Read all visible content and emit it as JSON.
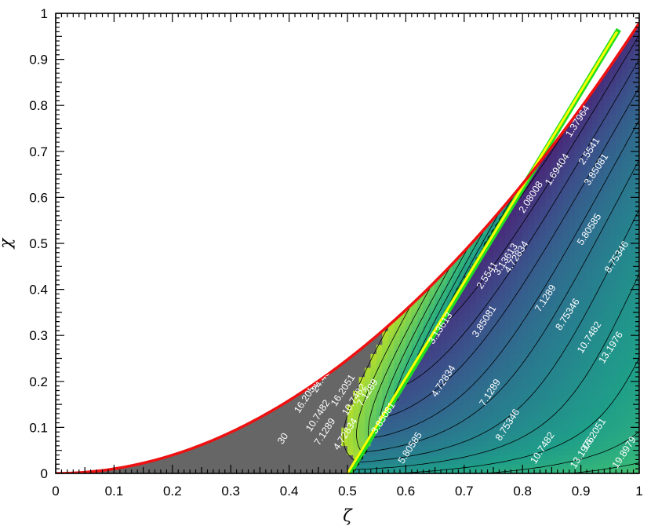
{
  "chart_data": {
    "type": "heatmap",
    "title": "",
    "xlabel": "ζ",
    "ylabel": "χ",
    "xlim": [
      0,
      1
    ],
    "ylim": [
      0,
      1
    ],
    "x_ticks": [
      "0",
      "0.1",
      "0.2",
      "0.3",
      "0.4",
      "0.5",
      "0.6",
      "0.7",
      "0.8",
      "0.9",
      "1"
    ],
    "y_ticks": [
      "0",
      "0.1",
      "0.2",
      "0.3",
      "0.4",
      "0.5",
      "0.6",
      "0.7",
      "0.8",
      "0.9",
      "1"
    ],
    "colormap": [
      "#440154",
      "#482878",
      "#3e4a89",
      "#31688e",
      "#26828e",
      "#1f9e89",
      "#35b779",
      "#6ece58",
      "#b5de2b"
    ],
    "colors": {
      "boundary": "#ee1111",
      "yellow_line": "#ffff00",
      "green_line": "#22dd22",
      "excluded_region": "#666666"
    },
    "contour_levels": [
      1.37964,
      1.69404,
      2.08008,
      2.5541,
      3.13613,
      3.85081,
      4.72834,
      5.80585,
      7.1289,
      8.75346,
      10.7482,
      13.1976,
      16.2051,
      19.8979,
      24.4323,
      30
    ],
    "contour_labels": [
      {
        "text": "30",
        "x": 0.39,
        "y": 0.075
      },
      {
        "text": "24.4323",
        "x": 0.46,
        "y": 0.21
      },
      {
        "text": "16.2051",
        "x": 0.43,
        "y": 0.165
      },
      {
        "text": "16.2051",
        "x": 0.493,
        "y": 0.18
      },
      {
        "text": "10.7482",
        "x": 0.45,
        "y": 0.125
      },
      {
        "text": "10.7482",
        "x": 0.512,
        "y": 0.16
      },
      {
        "text": "7.1289",
        "x": 0.462,
        "y": 0.09
      },
      {
        "text": "7.1289",
        "x": 0.535,
        "y": 0.175
      },
      {
        "text": "4.72834",
        "x": 0.497,
        "y": 0.085
      },
      {
        "text": "3.85081",
        "x": 0.562,
        "y": 0.12
      },
      {
        "text": "3.13613",
        "x": 0.66,
        "y": 0.315
      },
      {
        "text": "2.5541",
        "x": 0.74,
        "y": 0.43
      },
      {
        "text": "5.80585",
        "x": 0.608,
        "y": 0.055
      },
      {
        "text": "4.72834",
        "x": 0.665,
        "y": 0.2
      },
      {
        "text": "3.85081",
        "x": 0.735,
        "y": 0.33
      },
      {
        "text": "3.13613",
        "x": 0.772,
        "y": 0.465
      },
      {
        "text": "2.08008",
        "x": 0.815,
        "y": 0.6
      },
      {
        "text": "1.69404",
        "x": 0.86,
        "y": 0.66
      },
      {
        "text": "1.37964",
        "x": 0.895,
        "y": 0.765
      },
      {
        "text": "7.1289",
        "x": 0.745,
        "y": 0.175
      },
      {
        "text": "4.72834",
        "x": 0.79,
        "y": 0.47
      },
      {
        "text": "2.5541",
        "x": 0.915,
        "y": 0.7
      },
      {
        "text": "8.75346",
        "x": 0.775,
        "y": 0.105
      },
      {
        "text": "7.1289",
        "x": 0.84,
        "y": 0.38
      },
      {
        "text": "3.85081",
        "x": 0.927,
        "y": 0.66
      },
      {
        "text": "10.7482",
        "x": 0.835,
        "y": 0.055
      },
      {
        "text": "8.75346",
        "x": 0.878,
        "y": 0.345
      },
      {
        "text": "5.80585",
        "x": 0.915,
        "y": 0.53
      },
      {
        "text": "13.1976",
        "x": 0.903,
        "y": 0.045
      },
      {
        "text": "10.7482",
        "x": 0.915,
        "y": 0.295
      },
      {
        "text": "8.75346",
        "x": 0.962,
        "y": 0.47
      },
      {
        "text": "16.2051",
        "x": 0.923,
        "y": 0.085
      },
      {
        "text": "13.1976",
        "x": 0.952,
        "y": 0.273
      },
      {
        "text": "19.8979",
        "x": 0.975,
        "y": 0.045
      }
    ]
  }
}
